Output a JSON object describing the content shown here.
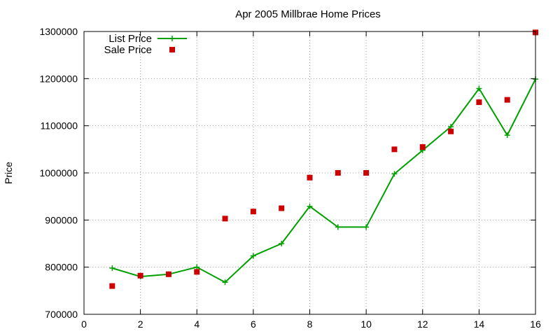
{
  "chart_data": {
    "type": "line",
    "title": "Apr 2005 Millbrae Home Prices",
    "xlabel": "",
    "ylabel": "Price",
    "xlim": [
      0,
      16
    ],
    "ylim": [
      700000,
      1300000
    ],
    "x_ticks": [
      0,
      2,
      4,
      6,
      8,
      10,
      12,
      14,
      16
    ],
    "y_ticks": [
      700000,
      800000,
      900000,
      1000000,
      1100000,
      1200000,
      1300000
    ],
    "grid": true,
    "legend_position": "top-left",
    "series": [
      {
        "name": "List Price",
        "style": "line-with-crosses",
        "color": "#00a000",
        "x": [
          1,
          2,
          3,
          4,
          5,
          6,
          7,
          8,
          9,
          10,
          11,
          12,
          13,
          14,
          15,
          16
        ],
        "values": [
          798000,
          780000,
          785000,
          800000,
          768000,
          824000,
          850000,
          929000,
          885000,
          885000,
          998000,
          1048000,
          1098000,
          1179000,
          1080000,
          1199000
        ]
      },
      {
        "name": "Sale Price",
        "style": "squares",
        "color": "#cc0000",
        "x": [
          1,
          2,
          3,
          4,
          5,
          6,
          7,
          8,
          9,
          10,
          11,
          12,
          13,
          14,
          15,
          16
        ],
        "values": [
          760000,
          782000,
          785000,
          790000,
          903000,
          918000,
          925000,
          990000,
          1000000,
          1000000,
          1050000,
          1055000,
          1088000,
          1150000,
          1155000,
          1298000
        ]
      }
    ]
  }
}
